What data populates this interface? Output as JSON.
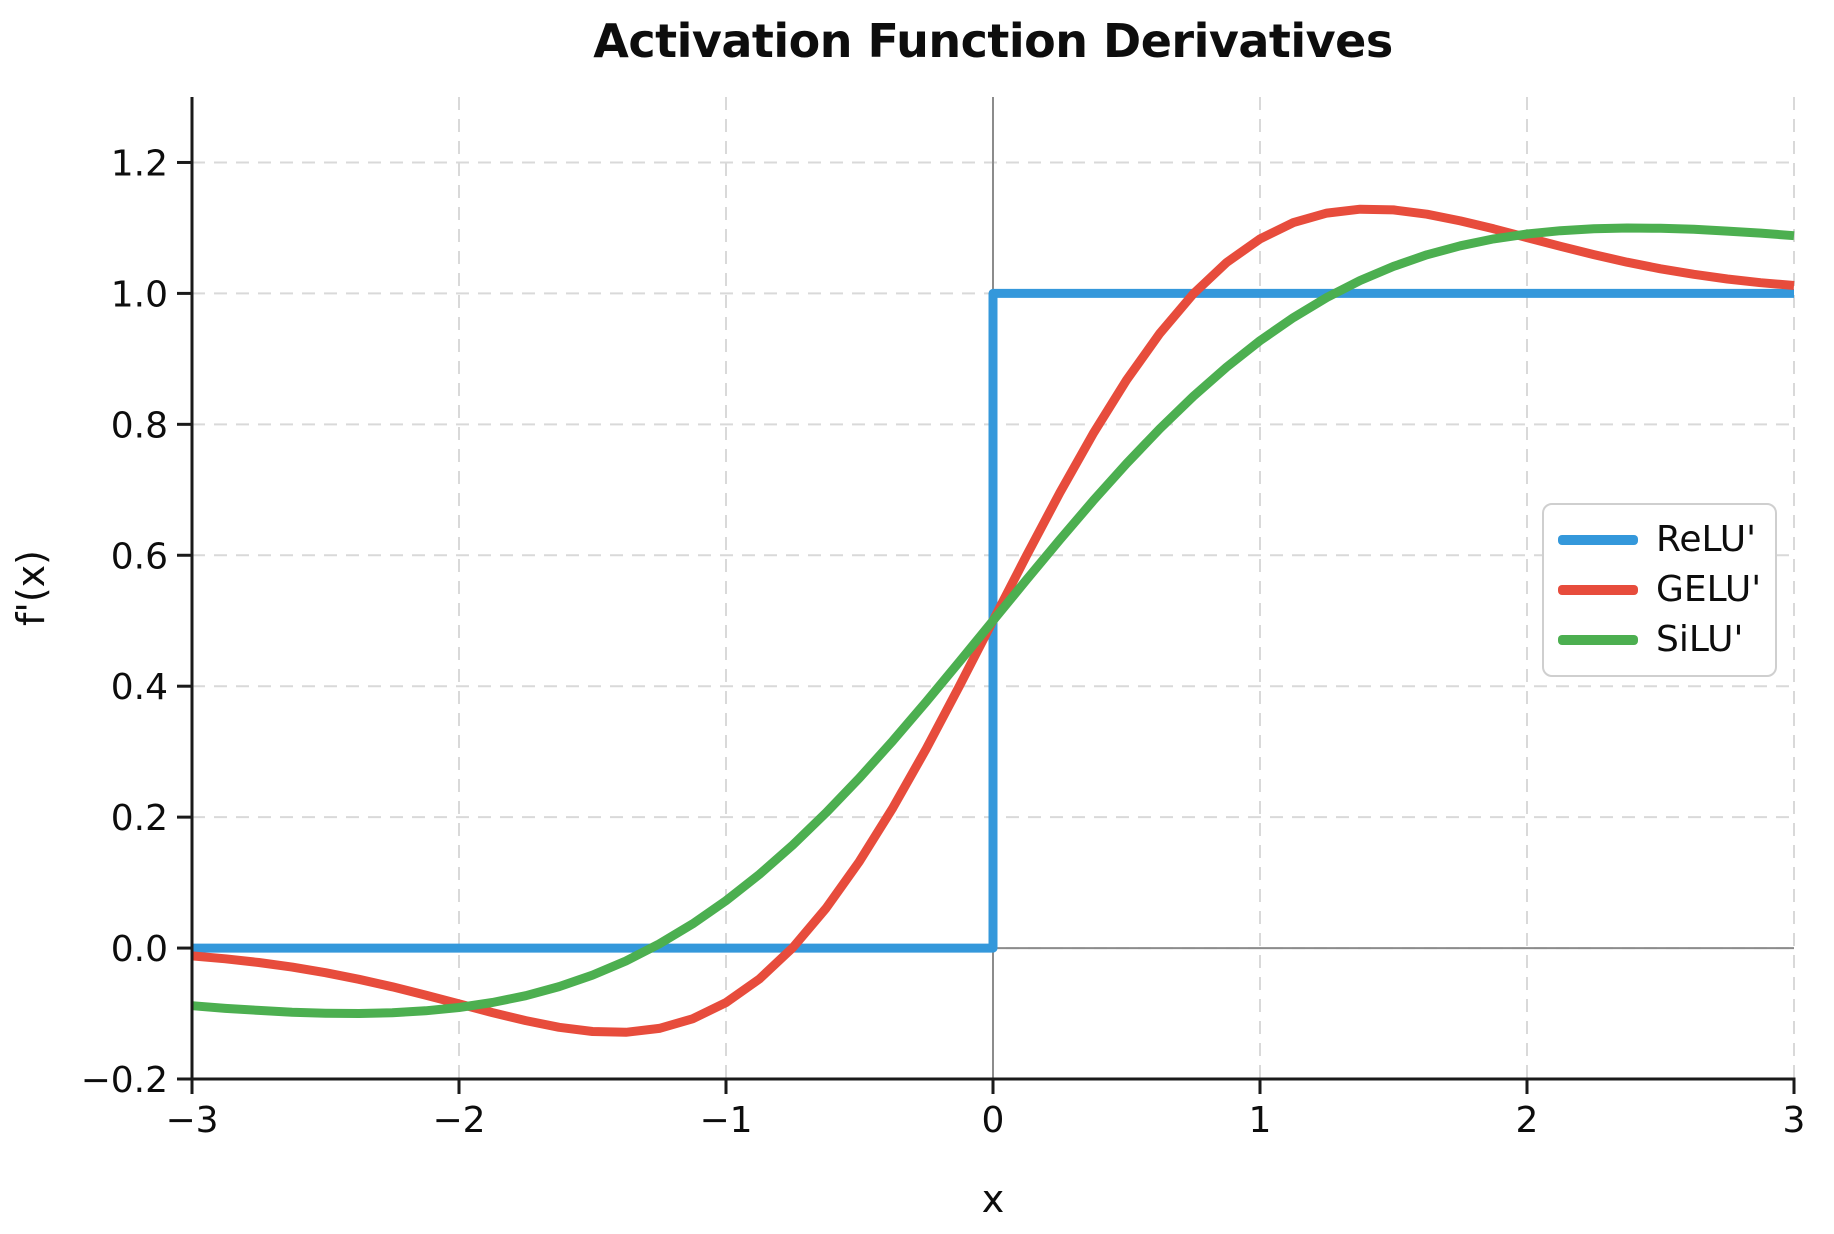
{
  "chart_data": {
    "type": "line",
    "title": "Activation Function Derivatives",
    "xlabel": "x",
    "ylabel": "f'(x)",
    "xlim": [
      -3,
      3
    ],
    "ylim": [
      -0.2,
      1.3
    ],
    "x_ticks": [
      -3,
      -2,
      -1,
      0,
      1,
      2,
      3
    ],
    "x_tick_labels": [
      "−3",
      "−2",
      "−1",
      "0",
      "1",
      "2",
      "3"
    ],
    "y_ticks": [
      -0.2,
      0.0,
      0.2,
      0.4,
      0.6,
      0.8,
      1.0,
      1.2
    ],
    "y_tick_labels": [
      "−0.2",
      "0.0",
      "0.2",
      "0.4",
      "0.6",
      "0.8",
      "1.0",
      "1.2"
    ],
    "grid": {
      "visible": true,
      "style": "dashed",
      "color": "#d9d9d9"
    },
    "zero_lines": {
      "visible": true,
      "color": "#8c8c8c"
    },
    "background": "#ffffff",
    "legend": {
      "position": "center-right",
      "entries": [
        "ReLU'",
        "GELU'",
        "SiLU'"
      ]
    },
    "series": [
      {
        "name": "ReLU'",
        "slug": "relu",
        "color": "#3498db",
        "style": "step",
        "x": [
          -3,
          0,
          0,
          3
        ],
        "values": [
          0,
          0,
          1,
          1
        ]
      },
      {
        "name": "GELU'",
        "slug": "gelu",
        "color": "#e74c3c",
        "style": "smooth",
        "x": [
          -3,
          -2.875,
          -2.75,
          -2.625,
          -2.5,
          -2.375,
          -2.25,
          -2.125,
          -2,
          -1.875,
          -1.75,
          -1.625,
          -1.5,
          -1.375,
          -1.25,
          -1.125,
          -1,
          -0.875,
          -0.75,
          -0.625,
          -0.5,
          -0.375,
          -0.25,
          -0.125,
          0,
          0.125,
          0.25,
          0.375,
          0.5,
          0.625,
          0.75,
          0.875,
          1,
          1.125,
          1.25,
          1.375,
          1.5,
          1.625,
          1.75,
          1.875,
          2,
          2.125,
          2.25,
          2.375,
          2.5,
          2.625,
          2.75,
          2.875,
          3
        ],
        "values": [
          -0.012,
          -0.0164,
          -0.022,
          -0.0291,
          -0.0376,
          -0.0477,
          -0.0592,
          -0.0719,
          -0.0852,
          -0.0986,
          -0.1108,
          -0.121,
          -0.1275,
          -0.1286,
          -0.1227,
          -0.1081,
          -0.0833,
          -0.0472,
          0.0007,
          0.0609,
          0.1325,
          0.2144,
          0.3046,
          0.4008,
          0.5,
          0.5992,
          0.6954,
          0.7856,
          0.8675,
          0.9391,
          0.9993,
          1.0472,
          1.0833,
          1.1081,
          1.1227,
          1.1286,
          1.1275,
          1.121,
          1.1108,
          1.0986,
          1.0852,
          1.0719,
          1.0592,
          1.0477,
          1.0376,
          1.0291,
          1.022,
          1.0164,
          1.012
        ]
      },
      {
        "name": "SiLU'",
        "slug": "silu",
        "color": "#4caf50",
        "style": "smooth",
        "x": [
          -3,
          -2.875,
          -2.75,
          -2.625,
          -2.5,
          -2.375,
          -2.25,
          -2.125,
          -2,
          -1.875,
          -1.75,
          -1.625,
          -1.5,
          -1.375,
          -1.25,
          -1.125,
          -1,
          -0.875,
          -0.75,
          -0.625,
          -0.5,
          -0.375,
          -0.25,
          -0.125,
          0,
          0.125,
          0.25,
          0.375,
          0.5,
          0.625,
          0.75,
          0.875,
          1,
          1.125,
          1.25,
          1.375,
          1.5,
          1.625,
          1.75,
          1.875,
          2,
          2.125,
          2.25,
          2.375,
          2.5,
          2.625,
          2.75,
          2.875,
          3
        ],
        "values": [
          -0.0881,
          -0.0921,
          -0.0952,
          -0.0979,
          -0.0995,
          -0.0999,
          -0.0987,
          -0.0958,
          -0.0908,
          -0.0832,
          -0.0727,
          -0.0589,
          -0.0413,
          -0.0197,
          0.0063,
          0.0369,
          0.0723,
          0.1126,
          0.1574,
          0.2067,
          0.26,
          0.3168,
          0.3763,
          0.4377,
          0.5,
          0.5623,
          0.6237,
          0.6832,
          0.74,
          0.7933,
          0.8426,
          0.8874,
          0.9277,
          0.9631,
          0.9937,
          1.0197,
          1.0413,
          1.0589,
          1.0727,
          1.0832,
          1.0908,
          1.0958,
          1.0987,
          1.0999,
          1.0995,
          1.0979,
          1.0952,
          1.0921,
          1.0881
        ]
      }
    ]
  }
}
